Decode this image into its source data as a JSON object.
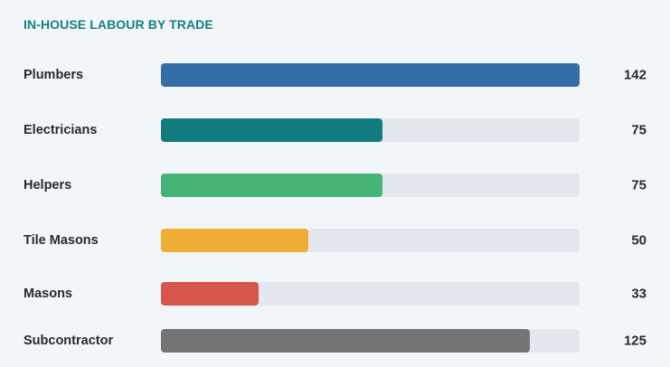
{
  "chart_data": {
    "type": "bar",
    "orientation": "horizontal",
    "title": "IN-HOUSE LABOUR BY TRADE",
    "max_value": 142,
    "categories": [
      "Plumbers",
      "Electricians",
      "Helpers",
      "Tile Masons",
      "Masons",
      "Subcontractor"
    ],
    "values": [
      142,
      75,
      75,
      50,
      33,
      125
    ],
    "value_labels": [
      "142",
      "75",
      "75",
      "50",
      "33",
      "125"
    ],
    "colors": [
      "#336fa6",
      "#127b80",
      "#46b474",
      "#f0ad33",
      "#d8554d",
      "#747474"
    ],
    "track_color": "#e3e8ef"
  }
}
